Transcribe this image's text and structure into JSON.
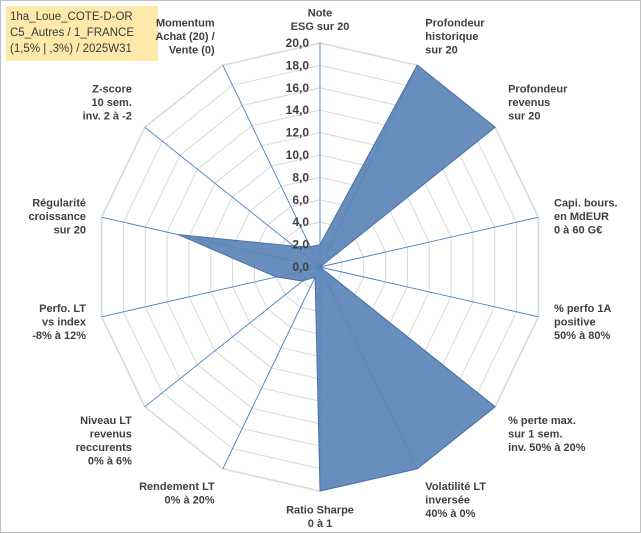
{
  "info_box": {
    "line1": "1ha_Loue_COTE-D-OR",
    "line2": "C5_Autres / 1_FRANCE",
    "line3": "(1,5% | ,3%) / 2025W31"
  },
  "colors": {
    "fill": "#5b84b8",
    "stroke": "#4a72a8",
    "grid": "#d9d9d9",
    "spoke": "#4a7fc1"
  },
  "chart_data": {
    "type": "radar",
    "rlim": [
      0,
      20
    ],
    "tick_step": 2,
    "tick_labels": [
      "0,0",
      "2,0",
      "4,0",
      "6,0",
      "8,0",
      "10,0",
      "12,0",
      "14,0",
      "16,0",
      "18,0",
      "20,0"
    ],
    "grid": true,
    "axes": [
      {
        "label": [
          "Note",
          "ESG sur 20"
        ]
      },
      {
        "label": [
          "Profondeur",
          "historique",
          "sur 20"
        ]
      },
      {
        "label": [
          "Profondeur",
          "revenus",
          "sur 20"
        ]
      },
      {
        "label": [
          "Capi. bours.",
          "en MdEUR",
          "0 à 60 G€"
        ]
      },
      {
        "label": [
          "% perfo 1A",
          "positive",
          "50% à 80%"
        ]
      },
      {
        "label": [
          "% perte max.",
          "sur 1 sem.",
          "inv. 50% à 20%"
        ]
      },
      {
        "label": [
          "Volatilité LT",
          "inversée",
          "40% à 0%"
        ]
      },
      {
        "label": [
          "Ratio Sharpe",
          "0 à 1"
        ]
      },
      {
        "label": [
          "Rendement LT",
          "0% à 20%"
        ]
      },
      {
        "label": [
          "Niveau LT",
          "revenus",
          "reccurents",
          "0% à 6%"
        ]
      },
      {
        "label": [
          "Perfo. LT",
          "vs index",
          "-8% à 12%"
        ]
      },
      {
        "label": [
          "Régularité",
          "croissance",
          "sur 20"
        ]
      },
      {
        "label": [
          "Z-score",
          "10 sem.",
          "inv. 2 à -2"
        ]
      },
      {
        "label": [
          "Momentum",
          "Achat (20) /",
          "Vente (0)"
        ]
      }
    ],
    "series": [
      {
        "values": [
          2.0,
          20.0,
          20.0,
          0.0,
          0.0,
          20.0,
          20.0,
          20.0,
          1.0,
          2.0,
          4.0,
          13.0,
          3.0,
          2.0
        ]
      }
    ]
  }
}
